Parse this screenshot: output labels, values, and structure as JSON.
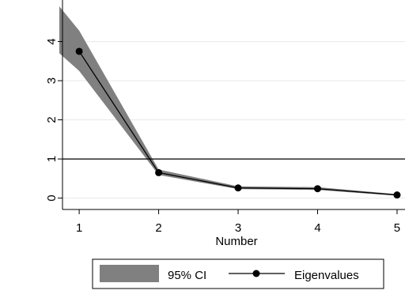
{
  "chart_data": {
    "type": "line",
    "xlabel": "Number",
    "ylabel": "",
    "x": [
      1,
      2,
      3,
      4,
      5
    ],
    "xticks": [
      "1",
      "2",
      "3",
      "4",
      "5"
    ],
    "yticks": [
      "0",
      "1",
      "2",
      "3",
      "4"
    ],
    "xlim": [
      0.75,
      5.1
    ],
    "ylim": [
      -0.25,
      4.9
    ],
    "grid": true,
    "reference_line": 1,
    "series": [
      {
        "name": "Eigenvalues",
        "values": [
          3.75,
          0.65,
          0.26,
          0.24,
          0.08
        ],
        "color": "#000000"
      }
    ],
    "ci_band": {
      "name": "95% CI",
      "x": [
        0.75,
        1,
        2,
        3,
        4,
        5
      ],
      "lower": [
        3.7,
        3.25,
        0.59,
        0.23,
        0.21,
        0.06
      ],
      "upper": [
        4.9,
        4.28,
        0.73,
        0.3,
        0.28,
        0.1
      ],
      "color": "#808080"
    },
    "legend": {
      "placement": "bottom",
      "items": [
        {
          "label": "95% CI",
          "kind": "band"
        },
        {
          "label": "Eigenvalues",
          "kind": "line-marker"
        }
      ]
    }
  }
}
